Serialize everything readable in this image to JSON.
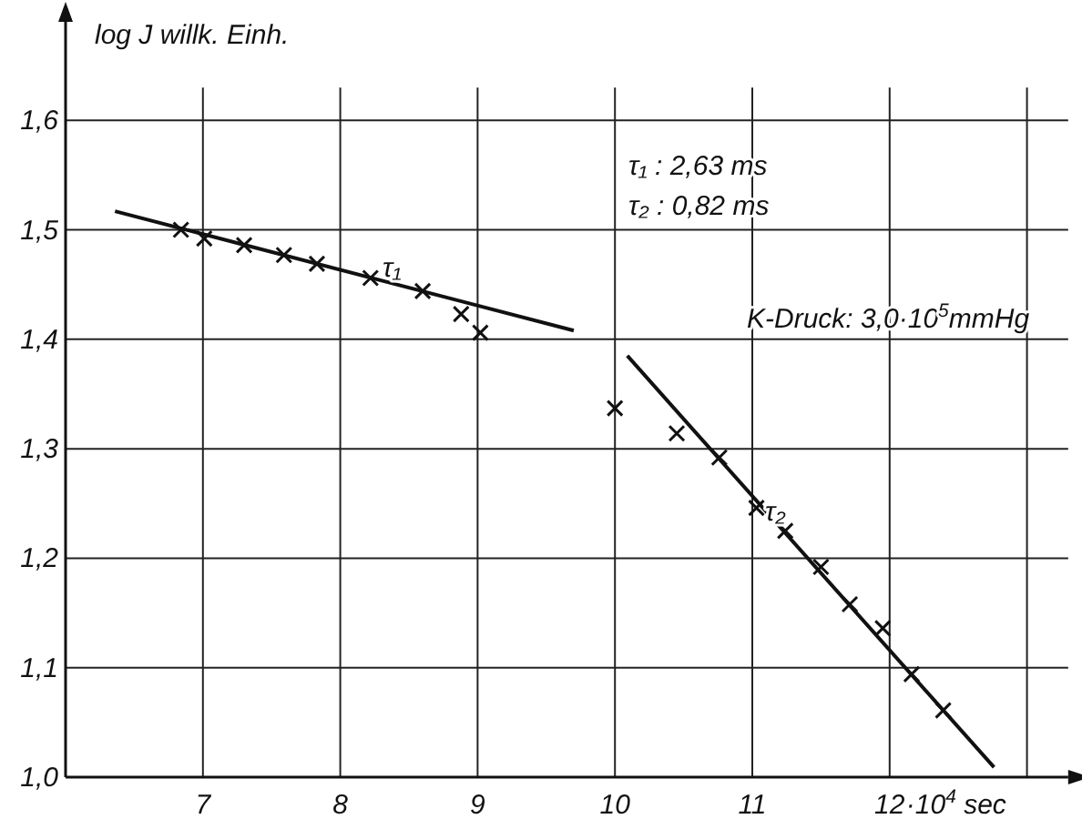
{
  "chart_data": {
    "type": "scatter",
    "ylabel": "log J  willk. Einh.",
    "xlim": [
      6,
      13.3
    ],
    "ylim": [
      1.0,
      1.69
    ],
    "xticks": [
      7,
      8,
      9,
      10,
      11,
      12,
      {
        "value": 13,
        "label": null
      }
    ],
    "yticks": [
      {
        "value": 1.0,
        "label": "1,0"
      },
      {
        "value": 1.1,
        "label": "1,1"
      },
      {
        "value": 1.2,
        "label": "1,2"
      },
      {
        "value": 1.3,
        "label": "1,3"
      },
      {
        "value": 1.4,
        "label": "1,4"
      },
      {
        "value": 1.5,
        "label": "1,5"
      },
      {
        "value": 1.6,
        "label": "1,6"
      }
    ],
    "xlabel": "·10$^{4}$ sec",
    "grid": true,
    "marker": "cross",
    "series": [
      {
        "color": "#111111",
        "x": [
          6.84,
          7.01,
          7.3,
          7.59,
          7.83,
          8.22,
          8.6,
          8.88,
          9.02
        ],
        "values": [
          1.5,
          1.492,
          1.486,
          1.477,
          1.469,
          1.456,
          1.444,
          1.423,
          1.406
        ]
      },
      {
        "color": "#111111",
        "x": [
          10.0,
          10.45,
          10.76,
          11.03,
          11.24,
          11.5,
          11.71,
          11.95,
          12.16,
          12.39
        ],
        "values": [
          1.337,
          1.314,
          1.292,
          1.246,
          1.225,
          1.192,
          1.158,
          1.136,
          1.094,
          1.061
        ]
      },
      {
        "type": "line",
        "marker": "none",
        "color": "#111111",
        "line_style": "solid",
        "x": [
          6.36,
          9.7
        ],
        "values": [
          1.517,
          1.408
        ]
      },
      {
        "type": "line",
        "marker": "none",
        "color": "#111111",
        "line_style": "solid",
        "x": [
          10.09,
          12.76
        ],
        "values": [
          1.385,
          1.009
        ]
      }
    ],
    "annotations": [
      "τ₁",
      "τ₂",
      "τ₁ : 2,63 ms",
      "τ₂ : 0,82 ms",
      "K-Druck: 3,0·10$^{5}$mmHg"
    ]
  }
}
